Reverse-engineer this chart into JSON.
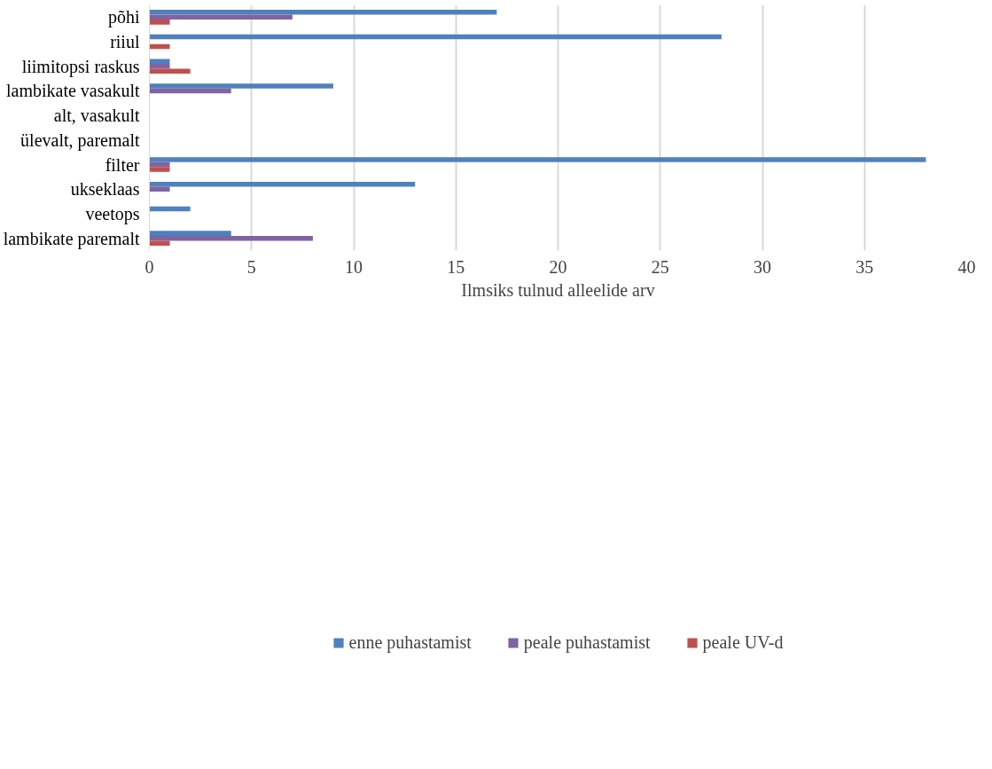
{
  "chart_data": {
    "type": "bar",
    "orientation": "horizontal",
    "xlabel": "Ilmsiks tulnud alleelide arv",
    "categories": [
      "põhi",
      "riiul",
      "liimitopsi raskus",
      "lambikate vasakult",
      "alt, vasakult",
      "ülevalt, paremalt",
      "filter",
      "ukseklaas",
      "veetops",
      "lambikate paremalt"
    ],
    "series": [
      {
        "name": "enne puhastamist",
        "color": "#4f81bd",
        "values": [
          17,
          28,
          1,
          9,
          null,
          null,
          38,
          13,
          2,
          4
        ]
      },
      {
        "name": "peale puhastamist",
        "color": "#8064a2",
        "values": [
          7,
          null,
          1,
          4,
          null,
          null,
          1,
          1,
          null,
          8
        ]
      },
      {
        "name": "peale UV-d",
        "color": "#c0504d",
        "values": [
          1,
          1,
          2,
          null,
          null,
          null,
          1,
          null,
          null,
          1
        ]
      }
    ],
    "xlim": [
      0,
      40
    ],
    "xticks": [
      0,
      5,
      10,
      15,
      20,
      25,
      30,
      35,
      40
    ],
    "grid": "x",
    "legend": "bottom"
  }
}
